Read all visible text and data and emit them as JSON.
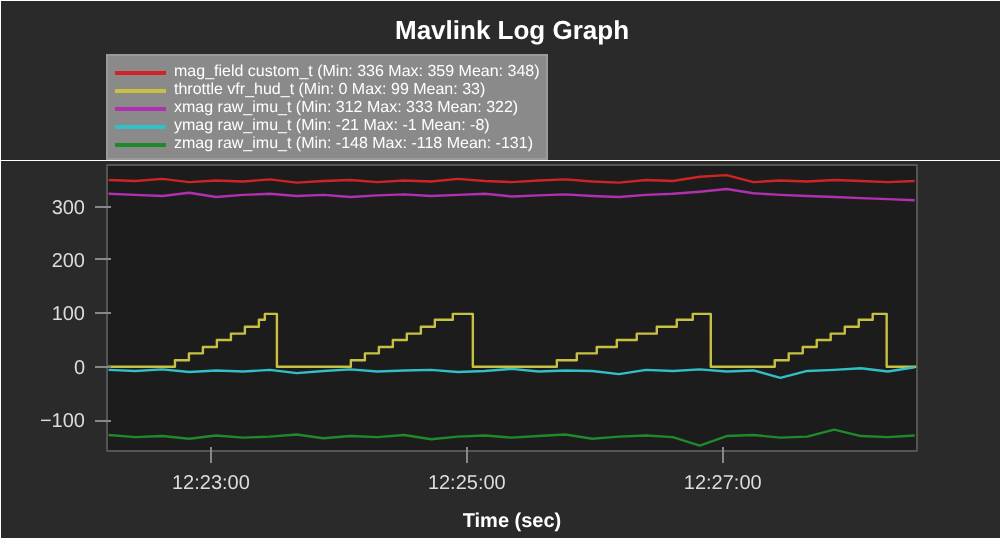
{
  "chart_data": {
    "type": "line",
    "title": "Mavlink Log Graph",
    "xlabel": "Time (sec)",
    "x": [
      12.37,
      12.3735,
      12.377,
      12.3805,
      12.384,
      12.3875,
      12.391,
      12.3945,
      12.398,
      12.4015,
      12.405,
      12.4085,
      12.412,
      12.4155,
      12.419,
      12.4225,
      12.426,
      12.4295,
      12.433,
      12.4365,
      12.44,
      12.4435,
      12.447,
      12.4505,
      12.454,
      12.4575,
      12.461,
      12.4645,
      12.468,
      12.4715,
      12.475
    ],
    "series": [
      {
        "name": "mag_field custom_t (Min: 336 Max: 359 Mean: 348)",
        "color": "#d02424",
        "values": [
          350,
          348,
          352,
          346,
          349,
          347,
          351,
          345,
          348,
          350,
          346,
          349,
          347,
          352,
          348,
          346,
          349,
          351,
          347,
          345,
          350,
          348,
          356,
          359,
          346,
          349,
          347,
          350,
          348,
          346,
          348
        ]
      },
      {
        "name": "throttle vfr_hud_t (Min: 0 Max: 99 Mean: 33)",
        "color": "#c8c040",
        "type": "step",
        "x": [
          12.3698,
          12.37865,
          12.38047,
          12.38229,
          12.38411,
          12.38594,
          12.38776,
          12.38958,
          12.39036,
          12.39193,
          12.40156,
          12.40339,
          12.40521,
          12.40703,
          12.40885,
          12.41068,
          12.4125,
          12.41484,
          12.41745,
          12.42839,
          12.43099,
          12.43359,
          12.4362,
          12.4388,
          12.44141,
          12.44401,
          12.44609,
          12.44844,
          12.45677,
          12.45859,
          12.46042,
          12.46224,
          12.46406,
          12.46589,
          12.46771,
          12.46953,
          12.47135,
          12.4752
        ],
        "values": [
          0,
          12,
          25,
          37,
          50,
          62,
          75,
          88,
          99,
          0,
          12,
          25,
          37,
          50,
          62,
          75,
          88,
          99,
          0,
          12,
          25,
          37,
          50,
          62,
          75,
          88,
          99,
          0,
          12,
          25,
          37,
          50,
          62,
          75,
          88,
          99,
          0,
          0
        ]
      },
      {
        "name": "xmag raw_imu_t (Min: 312 Max: 333 Mean: 322)",
        "color": "#b030b0",
        "values": [
          324,
          322,
          320,
          326,
          318,
          322,
          324,
          320,
          322,
          318,
          321,
          323,
          320,
          322,
          324,
          319,
          321,
          323,
          320,
          318,
          322,
          324,
          328,
          333,
          325,
          322,
          320,
          318,
          316,
          314,
          312
        ]
      },
      {
        "name": "ymag raw_imu_t (Min: -21 Max: -1 Mean: -8)",
        "color": "#30c0c8",
        "values": [
          -6,
          -8,
          -5,
          -10,
          -7,
          -9,
          -6,
          -12,
          -8,
          -5,
          -9,
          -7,
          -6,
          -10,
          -8,
          -4,
          -9,
          -7,
          -8,
          -14,
          -6,
          -8,
          -5,
          -9,
          -7,
          -21,
          -8,
          -6,
          -3,
          -9,
          -1
        ]
      },
      {
        "name": "zmag raw_imu_t (Min: -148 Max: -118 Mean: -131)",
        "color": "#208a2a",
        "values": [
          -128,
          -132,
          -130,
          -135,
          -129,
          -133,
          -131,
          -127,
          -134,
          -130,
          -132,
          -128,
          -136,
          -131,
          -129,
          -133,
          -130,
          -127,
          -135,
          -131,
          -129,
          -132,
          -148,
          -130,
          -128,
          -133,
          -131,
          -118,
          -130,
          -132,
          -129
        ]
      }
    ],
    "xlim": [
      12.3698,
      12.4753
    ],
    "ylim": [
      -158,
      378
    ],
    "xticks": [
      {
        "value": 12.383333,
        "label": "12:23:00"
      },
      {
        "value": 12.416667,
        "label": "12:25:00"
      },
      {
        "value": 12.45,
        "label": "12:27:00"
      }
    ],
    "yticks": [
      -100,
      0,
      100,
      200,
      300
    ],
    "grid": false,
    "legend": "top",
    "marker": "none",
    "line_style": "solid"
  }
}
